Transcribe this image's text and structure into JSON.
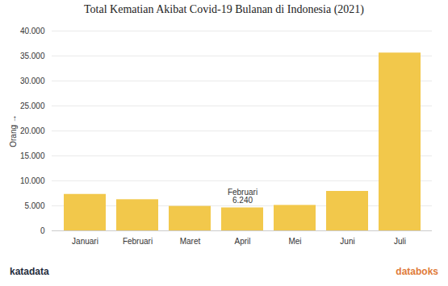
{
  "chart_data": {
    "type": "bar",
    "title": "Total Kematian Akibat Covid-19 Bulanan di Indonesia (2021)",
    "y_label": "Orang",
    "categories": [
      "Januari",
      "Februari",
      "Maret",
      "April",
      "Mei",
      "Juni",
      "Juli"
    ],
    "values": [
      7300,
      6240,
      4900,
      4600,
      5100,
      7900,
      35600
    ],
    "color": "#f2c84b",
    "ylim": [
      0,
      40000
    ],
    "yticks": [
      0,
      {
        "value": 5000,
        "label": "5.000"
      },
      {
        "value": 10000,
        "label": "10.000"
      },
      {
        "value": 15000,
        "label": "15.000"
      },
      {
        "value": 20000,
        "label": "20.000"
      },
      {
        "value": 25000,
        "label": "25.000"
      },
      {
        "value": 30000,
        "label": "30.000"
      },
      {
        "value": 35000,
        "label": "35.000"
      },
      {
        "value": 40000,
        "label": "40.000"
      }
    ],
    "grid": true,
    "annotation": {
      "category": "April",
      "text": "Februari\n6.240"
    },
    "credits": [
      "katadata",
      "databoks"
    ]
  }
}
